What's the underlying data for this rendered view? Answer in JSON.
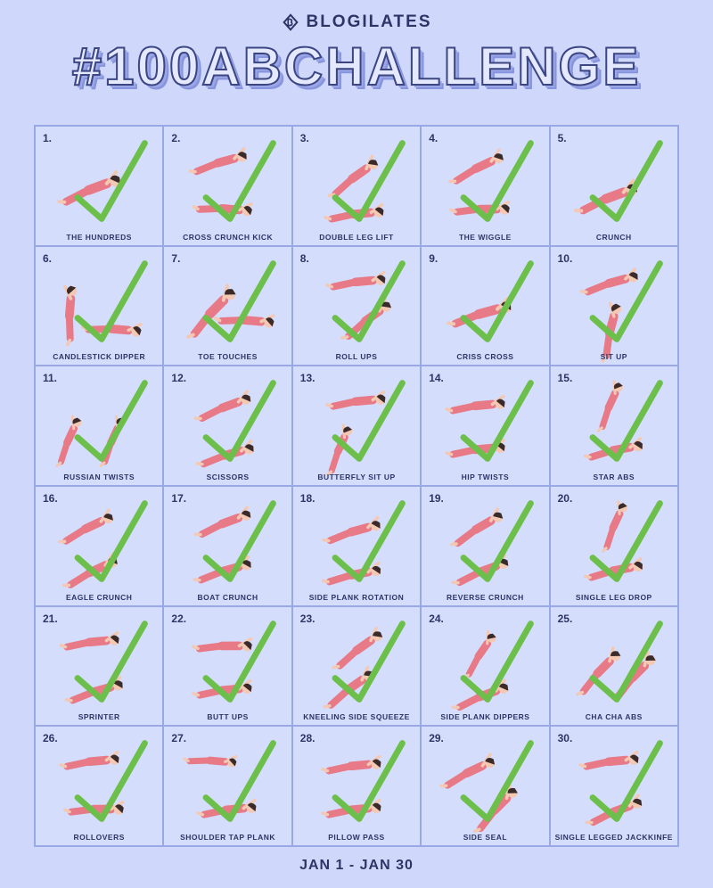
{
  "brand": {
    "name": "BLOGILATES",
    "logo_icon": "blogilates-logo-icon"
  },
  "title": "#100ABCHALLENGE",
  "footer": "JAN 1 - JAN 30",
  "colors": {
    "background": "#cfd8fb",
    "figure_skin": "#f3c9b3",
    "figure_outfit": "#e77a86",
    "check": "#6dbf4b",
    "hair": "#3a2a2a"
  },
  "days": [
    {
      "num": "1.",
      "label": "THE HUNDREDS",
      "completed": true
    },
    {
      "num": "2.",
      "label": "CROSS CRUNCH KICK",
      "completed": true
    },
    {
      "num": "3.",
      "label": "DOUBLE LEG LIFT",
      "completed": true
    },
    {
      "num": "4.",
      "label": "THE WIGGLE",
      "completed": true
    },
    {
      "num": "5.",
      "label": "CRUNCH",
      "completed": true
    },
    {
      "num": "6.",
      "label": "CANDLESTICK DIPPER",
      "completed": true
    },
    {
      "num": "7.",
      "label": "TOE TOUCHES",
      "completed": true
    },
    {
      "num": "8.",
      "label": "ROLL UPS",
      "completed": true
    },
    {
      "num": "9.",
      "label": "CRISS CROSS",
      "completed": true
    },
    {
      "num": "10.",
      "label": "SIT UP",
      "completed": true
    },
    {
      "num": "11.",
      "label": "RUSSIAN TWISTS",
      "completed": true
    },
    {
      "num": "12.",
      "label": "SCISSORS",
      "completed": true
    },
    {
      "num": "13.",
      "label": "BUTTERFLY SIT UP",
      "completed": true
    },
    {
      "num": "14.",
      "label": "HIP TWISTS",
      "completed": true
    },
    {
      "num": "15.",
      "label": "STAR ABS",
      "completed": true
    },
    {
      "num": "16.",
      "label": "EAGLE CRUNCH",
      "completed": true
    },
    {
      "num": "17.",
      "label": "BOAT CRUNCH",
      "completed": true
    },
    {
      "num": "18.",
      "label": "SIDE PLANK ROTATION",
      "completed": true
    },
    {
      "num": "19.",
      "label": "REVERSE CRUNCH",
      "completed": true
    },
    {
      "num": "20.",
      "label": "SINGLE LEG DROP",
      "completed": true
    },
    {
      "num": "21.",
      "label": "SPRINTER",
      "completed": true
    },
    {
      "num": "22.",
      "label": "BUTT UPS",
      "completed": true
    },
    {
      "num": "23.",
      "label": "KNEELING SIDE SQUEEZE",
      "completed": true
    },
    {
      "num": "24.",
      "label": "SIDE PLANK DIPPERS",
      "completed": true
    },
    {
      "num": "25.",
      "label": "CHA CHA ABS",
      "completed": true
    },
    {
      "num": "26.",
      "label": "ROLLOVERS",
      "completed": true
    },
    {
      "num": "27.",
      "label": "SHOULDER TAP PLANK",
      "completed": true
    },
    {
      "num": "28.",
      "label": "PILLOW PASS",
      "completed": true
    },
    {
      "num": "29.",
      "label": "SIDE SEAL",
      "completed": true
    },
    {
      "num": "30.",
      "label": "SINGLE LEGGED JACKKINFE",
      "completed": true
    }
  ]
}
